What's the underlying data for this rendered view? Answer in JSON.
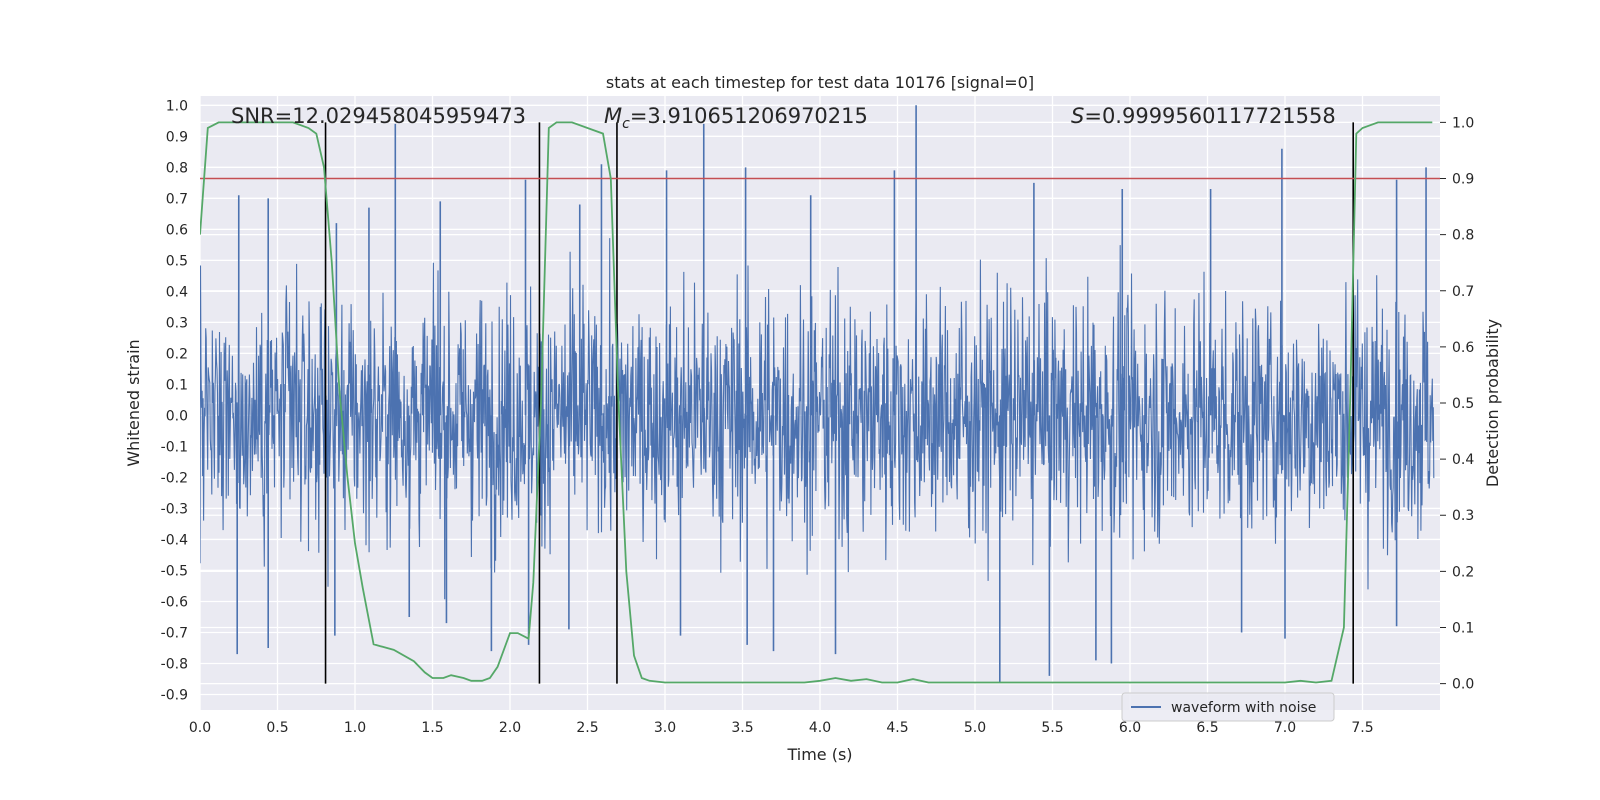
{
  "chart_data": {
    "type": "line",
    "title": "stats at each timestep for test data 10176 [signal=0]",
    "xlabel": "Time (s)",
    "ylabel": "Whitened strain",
    "y2label": "Detection probability",
    "xlim": [
      0.0,
      8.0
    ],
    "ylim": [
      -0.95,
      1.03
    ],
    "y2lim": [
      -0.047,
      1.047
    ],
    "xticks": [
      "0.0",
      "0.5",
      "1.0",
      "1.5",
      "2.0",
      "2.5",
      "3.0",
      "3.5",
      "4.0",
      "4.5",
      "5.0",
      "5.5",
      "6.0",
      "6.5",
      "7.0",
      "7.5"
    ],
    "yticks": [
      "1.0",
      "0.9",
      "0.8",
      "0.7",
      "0.6",
      "0.5",
      "0.4",
      "0.3",
      "0.2",
      "0.1",
      "0.0",
      "-0.1",
      "-0.2",
      "-0.3",
      "-0.4",
      "-0.5",
      "-0.6",
      "-0.7",
      "-0.8",
      "-0.9"
    ],
    "y2ticks": [
      "1.0",
      "0.9",
      "0.8",
      "0.7",
      "0.6",
      "0.5",
      "0.4",
      "0.3",
      "0.2",
      "0.1",
      "0.0"
    ],
    "legend": {
      "entries": [
        "waveform with noise"
      ],
      "loc": "lower right"
    },
    "annotations": {
      "snr": "SNR=12.029458045959473",
      "mc_symbol": "M",
      "mc_sub": "c",
      "mc_value": "=3.910651206970215",
      "s_symbol": "S",
      "s_value": "=0.9999560117721558"
    },
    "threshold": {
      "value": 0.9,
      "axis": "right",
      "color": "#c44e52"
    },
    "segment_boundaries": [
      0.81,
      2.19,
      2.69,
      7.44
    ],
    "series": [
      {
        "name": "waveform with noise",
        "axis": "left",
        "color": "#4c72b0",
        "note": "dense noisy strain; peaks listed",
        "peaks": [
          [
            0.25,
            0.71
          ],
          [
            0.44,
            0.7
          ],
          [
            0.88,
            0.62
          ],
          [
            1.09,
            0.67
          ],
          [
            1.26,
            0.94
          ],
          [
            1.55,
            0.69
          ],
          [
            2.1,
            0.76
          ],
          [
            2.45,
            0.68
          ],
          [
            2.59,
            0.81
          ],
          [
            3.01,
            0.79
          ],
          [
            3.25,
            0.94
          ],
          [
            3.52,
            0.8
          ],
          [
            3.94,
            0.71
          ],
          [
            4.48,
            0.79
          ],
          [
            4.62,
            1.0
          ],
          [
            5.38,
            0.75
          ],
          [
            5.95,
            0.73
          ],
          [
            6.52,
            0.73
          ],
          [
            6.98,
            0.86
          ],
          [
            7.72,
            0.76
          ],
          [
            7.91,
            0.8
          ]
        ],
        "troughs": [
          [
            0.24,
            -0.77
          ],
          [
            0.44,
            -0.75
          ],
          [
            0.87,
            -0.71
          ],
          [
            1.35,
            -0.65
          ],
          [
            1.59,
            -0.67
          ],
          [
            1.88,
            -0.76
          ],
          [
            2.12,
            -0.74
          ],
          [
            2.38,
            -0.69
          ],
          [
            3.1,
            -0.71
          ],
          [
            3.53,
            -0.74
          ],
          [
            3.7,
            -0.76
          ],
          [
            4.1,
            -0.77
          ],
          [
            5.16,
            -0.86
          ],
          [
            5.48,
            -0.84
          ],
          [
            5.78,
            -0.79
          ],
          [
            5.88,
            -0.8
          ],
          [
            6.72,
            -0.7
          ],
          [
            7.0,
            -0.72
          ],
          [
            7.72,
            -0.68
          ]
        ]
      },
      {
        "name": "detection probability",
        "axis": "right",
        "color": "#55a868",
        "x": [
          0.0,
          0.05,
          0.12,
          0.2,
          0.3,
          0.4,
          0.5,
          0.6,
          0.7,
          0.75,
          0.8,
          0.85,
          0.9,
          0.95,
          1.0,
          1.05,
          1.12,
          1.25,
          1.38,
          1.45,
          1.5,
          1.57,
          1.62,
          1.7,
          1.75,
          1.82,
          1.87,
          1.92,
          2.0,
          2.05,
          2.12,
          2.15,
          2.2,
          2.25,
          2.3,
          2.4,
          2.5,
          2.6,
          2.65,
          2.7,
          2.75,
          2.8,
          2.85,
          2.9,
          3.0,
          3.1,
          3.3,
          3.5,
          3.7,
          3.9,
          4.0,
          4.1,
          4.2,
          4.3,
          4.4,
          4.5,
          4.6,
          4.7,
          4.8,
          5.0,
          5.2,
          5.5,
          6.0,
          6.5,
          7.0,
          7.1,
          7.2,
          7.3,
          7.38,
          7.42,
          7.46,
          7.5,
          7.6,
          7.8,
          7.95
        ],
        "y": [
          0.8,
          0.99,
          1.0,
          1.0,
          1.0,
          1.0,
          1.0,
          1.0,
          0.99,
          0.98,
          0.92,
          0.75,
          0.52,
          0.37,
          0.25,
          0.17,
          0.07,
          0.06,
          0.04,
          0.02,
          0.01,
          0.01,
          0.015,
          0.01,
          0.005,
          0.005,
          0.01,
          0.03,
          0.09,
          0.09,
          0.08,
          0.18,
          0.5,
          0.99,
          1.0,
          1.0,
          0.99,
          0.98,
          0.9,
          0.5,
          0.2,
          0.05,
          0.01,
          0.005,
          0.002,
          0.002,
          0.002,
          0.002,
          0.002,
          0.002,
          0.005,
          0.01,
          0.005,
          0.008,
          0.002,
          0.002,
          0.008,
          0.002,
          0.002,
          0.002,
          0.002,
          0.002,
          0.002,
          0.002,
          0.002,
          0.005,
          0.002,
          0.005,
          0.1,
          0.5,
          0.98,
          0.99,
          1.0,
          1.0,
          1.0
        ]
      }
    ]
  }
}
